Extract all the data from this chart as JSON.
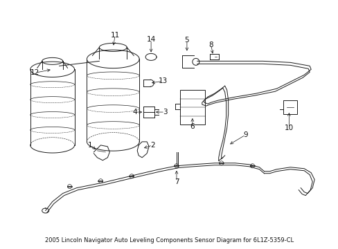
{
  "title": "2005 Lincoln Navigator Auto Leveling Components Sensor Diagram for 6L1Z-5359-CL",
  "bg_color": "#ffffff",
  "fig_width": 4.89,
  "fig_height": 3.6,
  "dpi": 100,
  "line_color": "#1a1a1a",
  "text_color": "#111111",
  "font_size": 7.5,
  "title_font_size": 6.0
}
